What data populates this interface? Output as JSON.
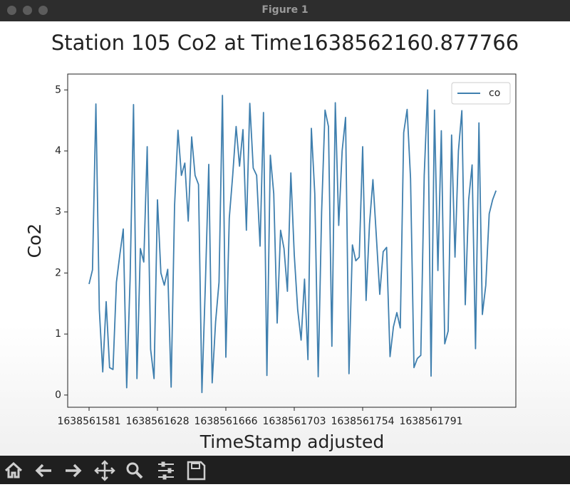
{
  "window": {
    "title": "Figure 1"
  },
  "chart_data": {
    "type": "line",
    "title": "Station 105 Co2 at Time1638562160.877766",
    "x_label": "TimeStamp adjusted",
    "y_label": "Co2",
    "categories": [
      "1638561581",
      null,
      null,
      null,
      null,
      null,
      null,
      null,
      null,
      null,
      null,
      null,
      null,
      null,
      null,
      null,
      null,
      null,
      null,
      null,
      "1638561628",
      null,
      null,
      null,
      null,
      null,
      null,
      null,
      null,
      null,
      null,
      null,
      null,
      null,
      null,
      null,
      null,
      null,
      null,
      null,
      "1638561666",
      null,
      null,
      null,
      null,
      null,
      null,
      null,
      null,
      null,
      null,
      null,
      null,
      null,
      null,
      null,
      null,
      null,
      null,
      null,
      "1638561703",
      null,
      null,
      null,
      null,
      null,
      null,
      null,
      null,
      null,
      null,
      null,
      null,
      null,
      null,
      null,
      null,
      null,
      null,
      null,
      "1638561754",
      null,
      null,
      null,
      null,
      null,
      null,
      null,
      null,
      null,
      null,
      null,
      null,
      null,
      null,
      null,
      null,
      null,
      null,
      null,
      "1638561791",
      null,
      null,
      null,
      null,
      null,
      null,
      null,
      null,
      null,
      null,
      null,
      null,
      null,
      null,
      null,
      null,
      null,
      null,
      null
    ],
    "series": [
      {
        "name": "co",
        "color": "#3f7fae",
        "values": [
          1.82,
          2.05,
          4.77,
          1.4,
          0.38,
          1.53,
          0.45,
          0.42,
          1.85,
          2.3,
          2.72,
          0.12,
          1.9,
          4.76,
          0.27,
          2.4,
          2.18,
          4.07,
          0.75,
          0.27,
          3.2,
          2.0,
          1.8,
          2.06,
          0.13,
          3.1,
          4.34,
          3.6,
          3.8,
          2.85,
          4.23,
          3.6,
          3.45,
          0.04,
          1.8,
          3.78,
          0.2,
          1.2,
          1.85,
          4.91,
          0.62,
          2.9,
          3.6,
          4.4,
          3.75,
          4.35,
          2.7,
          4.78,
          3.72,
          3.6,
          2.44,
          4.63,
          0.32,
          3.93,
          3.3,
          1.18,
          2.7,
          2.4,
          1.7,
          3.64,
          2.3,
          1.4,
          0.9,
          1.9,
          0.58,
          4.37,
          3.3,
          0.3,
          3.0,
          4.67,
          4.4,
          0.8,
          4.79,
          2.78,
          4.0,
          4.55,
          0.35,
          2.46,
          2.2,
          2.26,
          4.07,
          1.55,
          2.8,
          3.53,
          2.6,
          1.65,
          2.35,
          2.42,
          0.63,
          1.12,
          1.35,
          1.1,
          4.3,
          4.68,
          3.55,
          0.45,
          0.6,
          0.65,
          3.6,
          5.0,
          0.31,
          4.67,
          2.04,
          4.33,
          0.84,
          1.05,
          4.26,
          2.26,
          4.0,
          4.66,
          1.48,
          3.2,
          3.77,
          0.76,
          4.46,
          1.32,
          1.8,
          2.97,
          3.2,
          3.35
        ]
      }
    ],
    "ylim": [
      -0.2,
      5.26
    ],
    "yticks": [
      0,
      1,
      2,
      3,
      4,
      5
    ],
    "legend": "upper right"
  }
}
